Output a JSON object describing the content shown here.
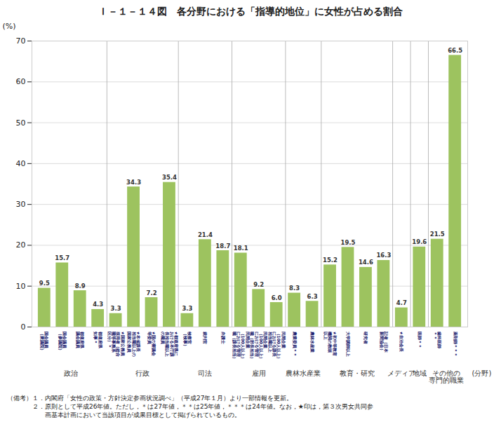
{
  "chart_data": {
    "type": "bar",
    "title": "Ｉ－１－１４図　各分野における「指導的地位」に女性が占める割合",
    "ylabel": "(%)",
    "categories": [
      "国会議員\n（衆議院）",
      "国会議員\n（参議院）",
      "都道府県\n議会議員",
      "都道府県\n知事＊",
      "★国家公務員\n採用者（総合\n職等事務系\n区分）＊",
      "★本省課長\n相当職以上の\n国家公務員",
      "★国の審議会\n等委員",
      "★都道府県に\nおける本庁課\n長相当職以上\nの職員",
      "検察官\n（検事）",
      "裁判官",
      "弁護士",
      "民間企業\n（100人以上）\nにおける管理\n職（課長相当）",
      "民間企業\n（100人以上）\nにおける管理\n職（部長相当）",
      "民間企業\n（100人以上）\nにおける課長\n相当職以上",
      "農業委員＊＊",
      "農林水産業",
      "★初中等教育\n機関の教頭\n以上",
      "大学講師以上",
      "研究者",
      "記者（日本\n新聞協会）",
      "★自治会長",
      "医師＊＊",
      "歯科医師\n＊＊",
      "薬剤師＊＊＊"
    ],
    "values": [
      9.5,
      15.7,
      8.9,
      4.3,
      3.3,
      34.3,
      7.2,
      35.4,
      3.3,
      21.4,
      18.7,
      18.1,
      9.2,
      6.0,
      8.3,
      6.3,
      15.2,
      19.5,
      14.6,
      16.3,
      4.7,
      19.6,
      21.5,
      66.5
    ],
    "value_labels": [
      "9.5",
      "15.7",
      "8.9",
      "4.3",
      "3.3",
      "34.3",
      "7.2",
      "35.4",
      "3.3",
      "21.4",
      "18.7",
      "18.1",
      "9.2",
      "6.0",
      "8.3",
      "6.3",
      "15.2",
      "19.5",
      "14.6",
      "16.3",
      "4.7",
      "19.6",
      "21.5",
      "66.5"
    ],
    "groups": [
      "政治",
      "政治",
      "政治",
      "政治",
      "行政",
      "行政",
      "行政",
      "行政",
      "司法",
      "司法",
      "司法",
      "雇用",
      "雇用",
      "雇用",
      "農林水産業",
      "農林水産業",
      "教育・研究",
      "教育・研究",
      "教育・研究",
      "教育・研究",
      "メディア",
      "地域",
      "その他の\n専門的職業",
      "その他の\n専門的職業"
    ],
    "group_axis_label": "(分野)",
    "color": "#9dc35f",
    "ylim": [
      0,
      70
    ],
    "yticks": [
      0,
      10,
      20,
      30,
      40,
      50,
      60,
      70
    ],
    "grid": true,
    "data_labels": true,
    "notes": [
      "（備考）１．内閣府「女性の政策・方針決定参画状況調べ」（平成27年１月）より一部情報を更新。",
      "　　　　２．原則として平成26年値。ただし，＊は27年値，＊＊は25年値，＊＊＊は24年値。なお，★印は，第３次男女共同参",
      "　　　　　　画基本計画において当該項目が成果目標として掲げられているもの。"
    ]
  }
}
